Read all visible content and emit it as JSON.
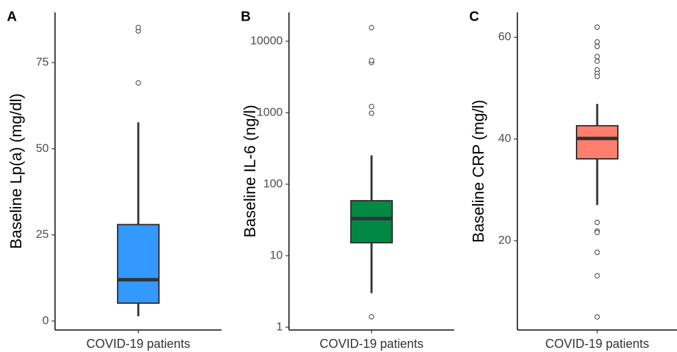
{
  "chart_data": [
    {
      "type": "box",
      "label": "A",
      "ylabel": "Baseline Lp(a) (mg/dl)",
      "categories": [
        "COVID-19 patients"
      ],
      "color": "#3399ff",
      "scale": "linear",
      "ylim": [
        -2.6,
        89.6
      ],
      "yticks": [
        0,
        25,
        50,
        75
      ],
      "boxes": [
        {
          "min": 1.4,
          "q1": 5.2,
          "median": 12,
          "q3": 28,
          "max": 57.7,
          "outliers": [
            69.1,
            84.2,
            85.2
          ]
        }
      ]
    },
    {
      "type": "box",
      "label": "B",
      "ylabel": "Baseline IL-6 (ng/l)",
      "categories": [
        "COVID-19 patients"
      ],
      "color": "#008844",
      "scale": "log",
      "ylim": [
        0.915,
        25300
      ],
      "yticks": [
        1,
        10,
        100,
        1000,
        10000
      ],
      "boxes": [
        {
          "min": 3.0,
          "q1": 15.2,
          "median": 33,
          "q3": 58.8,
          "max": 253,
          "outliers": [
            1.4,
            980,
            1220,
            5030,
            5380,
            15500
          ]
        }
      ]
    },
    {
      "type": "box",
      "label": "C",
      "ylabel": "Baseline CRP (mg/l)",
      "categories": [
        "COVID-19 patients"
      ],
      "color": "#ff7f6e",
      "scale": "linear",
      "ylim": [
        2.43,
        64.9
      ],
      "yticks": [
        20,
        40,
        60
      ],
      "boxes": [
        {
          "min": 27.0,
          "q1": 36.1,
          "median": 40.1,
          "q3": 42.6,
          "max": 46.9,
          "outliers": [
            62.0,
            59.1,
            58.2,
            56.2,
            55.3,
            53.6,
            52.9,
            52.3,
            23.6,
            21.9,
            21.6,
            17.7,
            13.1,
            5.0
          ]
        }
      ]
    }
  ]
}
